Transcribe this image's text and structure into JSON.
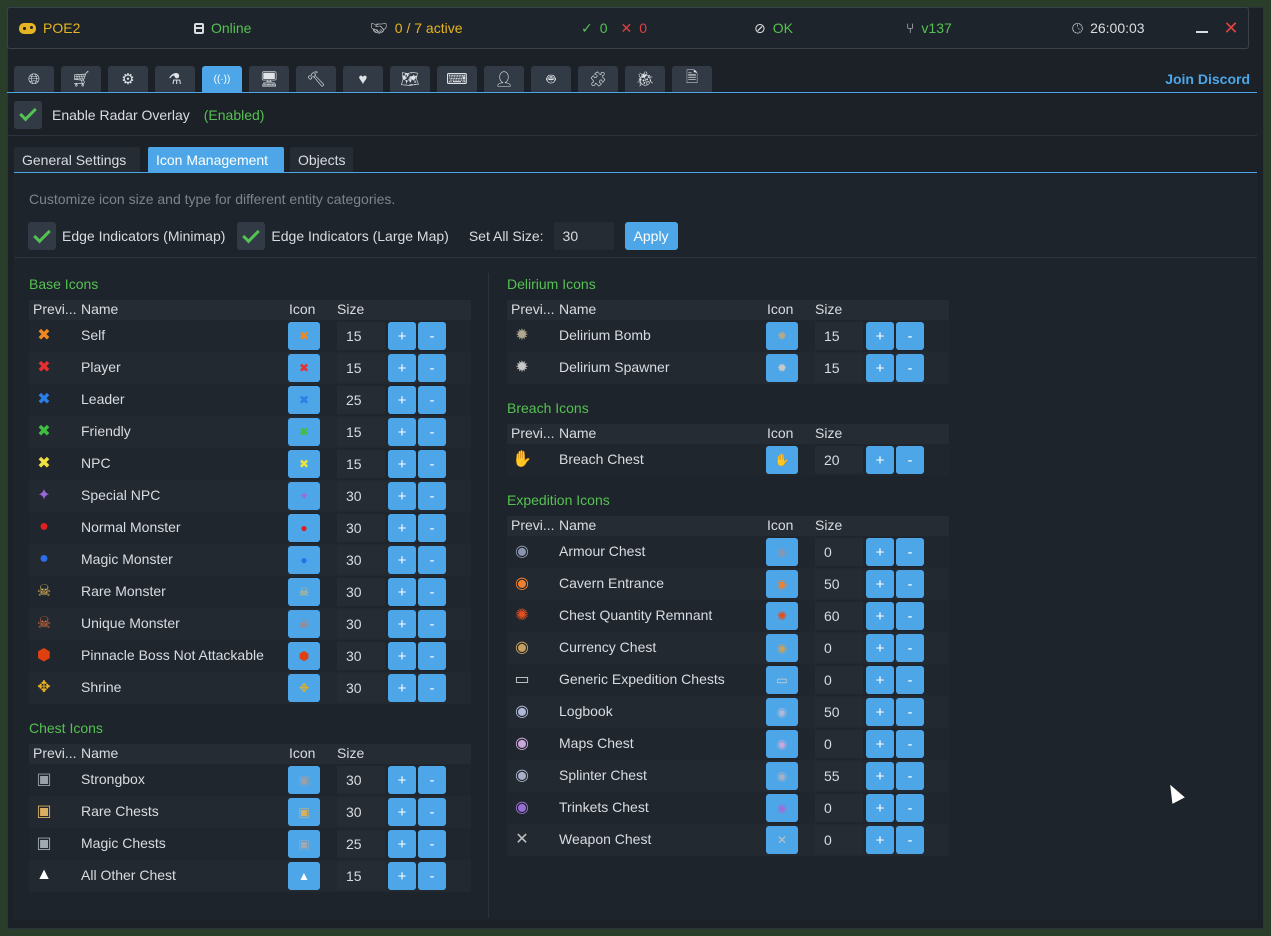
{
  "titlebar": {
    "app": "POE2",
    "connection": "Online",
    "active": "0 / 7 active",
    "ok_count": "0",
    "err_count": "0",
    "status": "OK",
    "version": "v137",
    "timer": "26:00:03"
  },
  "tabs": {
    "icons": [
      "globe",
      "cart",
      "gear",
      "flask",
      "radar",
      "monitor",
      "hammer",
      "heart-pulse",
      "map",
      "keyboard",
      "user",
      "robot",
      "puzzle",
      "bug",
      "file"
    ],
    "active_index": 4,
    "discord": "Join Discord"
  },
  "overlay": {
    "label": "Enable Radar Overlay",
    "status": "(Enabled)"
  },
  "subtabs": [
    "General Settings",
    "Icon Management",
    "Objects"
  ],
  "panel": {
    "description": "Customize icon size and type for different entity categories.",
    "edge_minimap": "Edge Indicators (Minimap)",
    "edge_largemap": "Edge Indicators (Large Map)",
    "set_all_label": "Set All Size:",
    "set_all_value": "30",
    "apply": "Apply"
  },
  "headers": {
    "preview": "Previ...",
    "name": "Name",
    "icon": "Icon",
    "size": "Size"
  },
  "controls": {
    "plus": "+",
    "minus": "-"
  },
  "sections": {
    "base": {
      "title": "Base Icons",
      "rows": [
        {
          "name": "Self",
          "size": "15",
          "glyph": "✖",
          "color": "#f08a20"
        },
        {
          "name": "Player",
          "size": "15",
          "glyph": "✖",
          "color": "#e83030"
        },
        {
          "name": "Leader",
          "size": "25",
          "glyph": "✖",
          "color": "#2a7ee8"
        },
        {
          "name": "Friendly",
          "size": "15",
          "glyph": "✖",
          "color": "#40c040"
        },
        {
          "name": "NPC",
          "size": "15",
          "glyph": "✖",
          "color": "#f0e040"
        },
        {
          "name": "Special NPC",
          "size": "30",
          "glyph": "✦",
          "color": "#9a6ad8"
        },
        {
          "name": "Normal Monster",
          "size": "30",
          "glyph": "●",
          "color": "#e02020"
        },
        {
          "name": "Magic Monster",
          "size": "30",
          "glyph": "●",
          "color": "#2a6ee8"
        },
        {
          "name": "Rare Monster",
          "size": "30",
          "glyph": "☠",
          "color": "#e8c060"
        },
        {
          "name": "Unique Monster",
          "size": "30",
          "glyph": "☠",
          "color": "#e87040"
        },
        {
          "name": "Pinnacle Boss Not Attackable",
          "size": "30",
          "glyph": "⬢",
          "color": "#e04010"
        },
        {
          "name": "Shrine",
          "size": "30",
          "glyph": "✥",
          "color": "#e8b020"
        }
      ]
    },
    "chest": {
      "title": "Chest Icons",
      "rows": [
        {
          "name": "Strongbox",
          "size": "30",
          "glyph": "▣",
          "color": "#9aa0a8"
        },
        {
          "name": "Rare Chests",
          "size": "30",
          "glyph": "▣",
          "color": "#d8b060"
        },
        {
          "name": "Magic Chests",
          "size": "25",
          "glyph": "▣",
          "color": "#a0a8b0"
        },
        {
          "name": "All Other Chest",
          "size": "15",
          "glyph": "▲",
          "color": "#ffffff"
        }
      ]
    },
    "delirium": {
      "title": "Delirium Icons",
      "rows": [
        {
          "name": "Delirium Bomb",
          "size": "15",
          "glyph": "✹",
          "color": "#b0a890"
        },
        {
          "name": "Delirium Spawner",
          "size": "15",
          "glyph": "✹",
          "color": "#c8c8c8"
        }
      ]
    },
    "breach": {
      "title": "Breach Icons",
      "rows": [
        {
          "name": "Breach Chest",
          "size": "20",
          "glyph": "✋",
          "color": "#e02020"
        }
      ]
    },
    "expedition": {
      "title": "Expedition Icons",
      "rows": [
        {
          "name": "Armour Chest",
          "size": "0",
          "glyph": "◉",
          "color": "#8a96b0"
        },
        {
          "name": "Cavern Entrance",
          "size": "50",
          "glyph": "◉",
          "color": "#f08030"
        },
        {
          "name": "Chest Quantity Remnant",
          "size": "60",
          "glyph": "✺",
          "color": "#e05020"
        },
        {
          "name": "Currency Chest",
          "size": "0",
          "glyph": "◉",
          "color": "#c8a060"
        },
        {
          "name": "Generic Expedition Chests",
          "size": "0",
          "glyph": "▭",
          "color": "#d0d0d0"
        },
        {
          "name": "Logbook",
          "size": "50",
          "glyph": "◉",
          "color": "#b0b8d8"
        },
        {
          "name": "Maps Chest",
          "size": "0",
          "glyph": "◉",
          "color": "#c8a8d8"
        },
        {
          "name": "Splinter Chest",
          "size": "55",
          "glyph": "◉",
          "color": "#a8b0c8"
        },
        {
          "name": "Trinkets Chest",
          "size": "0",
          "glyph": "◉",
          "color": "#9a70d8"
        },
        {
          "name": "Weapon Chest",
          "size": "0",
          "glyph": "✕",
          "color": "#c0c0c0"
        }
      ]
    }
  }
}
